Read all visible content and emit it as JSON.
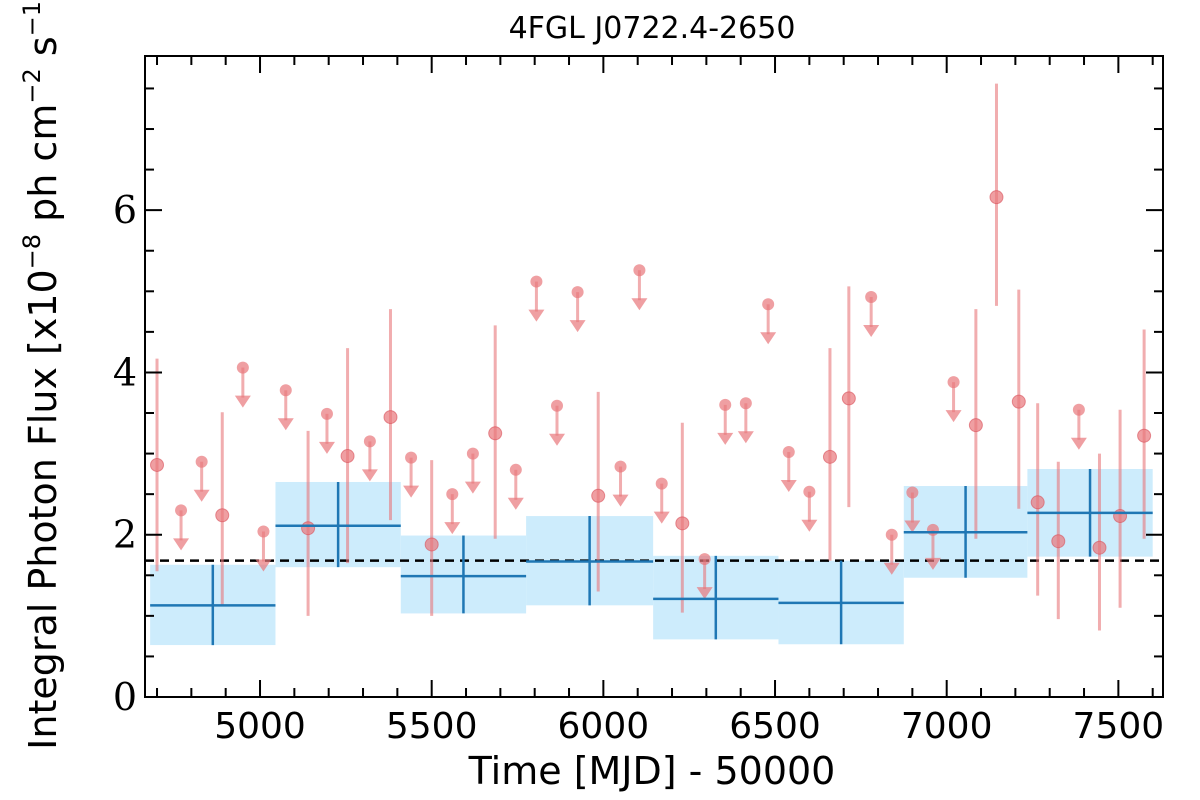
{
  "chart_data": {
    "type": "scatter",
    "title": "4FGL J0722.4-2650",
    "xlabel": "Time [MJD] - 50000",
    "ylabel": "Integral Photon Flux [x10^-8 ph cm^-2 s^-1]",
    "ylabel_parts": {
      "prefix": "Integral Photon Flux [x10",
      "exp1": "−8",
      "mid": " ph cm",
      "exp2": "−2",
      "mid2": " s",
      "exp3": "−1",
      "suffix": "]"
    },
    "xlim": [
      4665,
      7630
    ],
    "ylim": [
      0,
      7.9
    ],
    "xticks": [
      5000,
      5500,
      6000,
      6500,
      7000,
      7500
    ],
    "yticks": [
      0,
      2,
      4,
      6
    ],
    "average_flux": 1.68,
    "colors": {
      "points": "#e8767a",
      "bins": "#1f77b4",
      "band": "#cdecfc",
      "average": "#000000"
    },
    "detections": [
      {
        "x": 4700,
        "y": 2.86,
        "lo": 1.55,
        "hi": 4.17
      },
      {
        "x": 4890,
        "y": 2.24,
        "lo": 1.12,
        "hi": 3.51
      },
      {
        "x": 5140,
        "y": 2.08,
        "lo": 1.0,
        "hi": 3.28
      },
      {
        "x": 5255,
        "y": 2.97,
        "lo": 1.65,
        "hi": 4.3
      },
      {
        "x": 5380,
        "y": 3.45,
        "lo": 2.18,
        "hi": 4.78
      },
      {
        "x": 5500,
        "y": 1.88,
        "lo": 1.0,
        "hi": 2.92
      },
      {
        "x": 5685,
        "y": 3.25,
        "lo": 1.95,
        "hi": 4.58
      },
      {
        "x": 5985,
        "y": 2.48,
        "lo": 1.3,
        "hi": 3.76
      },
      {
        "x": 6230,
        "y": 2.14,
        "lo": 1.04,
        "hi": 3.38
      },
      {
        "x": 6660,
        "y": 2.96,
        "lo": 1.68,
        "hi": 4.3
      },
      {
        "x": 6715,
        "y": 3.68,
        "lo": 2.34,
        "hi": 5.06
      },
      {
        "x": 7085,
        "y": 3.35,
        "lo": 1.95,
        "hi": 4.78
      },
      {
        "x": 7145,
        "y": 6.16,
        "lo": 4.82,
        "hi": 7.56
      },
      {
        "x": 7210,
        "y": 3.64,
        "lo": 2.32,
        "hi": 5.02
      },
      {
        "x": 7265,
        "y": 2.4,
        "lo": 1.25,
        "hi": 3.62
      },
      {
        "x": 7325,
        "y": 1.92,
        "lo": 0.96,
        "hi": 2.9
      },
      {
        "x": 7445,
        "y": 1.84,
        "lo": 0.82,
        "hi": 3.0
      },
      {
        "x": 7505,
        "y": 2.23,
        "lo": 1.1,
        "hi": 3.54
      },
      {
        "x": 7575,
        "y": 3.22,
        "lo": 1.95,
        "hi": 4.53
      }
    ],
    "upper_limits": [
      {
        "x": 4770,
        "y": 2.3
      },
      {
        "x": 4830,
        "y": 2.9
      },
      {
        "x": 4950,
        "y": 4.06
      },
      {
        "x": 5010,
        "y": 2.04
      },
      {
        "x": 5075,
        "y": 3.78
      },
      {
        "x": 5195,
        "y": 3.49
      },
      {
        "x": 5320,
        "y": 3.15
      },
      {
        "x": 5440,
        "y": 2.95
      },
      {
        "x": 5560,
        "y": 2.5
      },
      {
        "x": 5620,
        "y": 3.0
      },
      {
        "x": 5745,
        "y": 2.8
      },
      {
        "x": 5805,
        "y": 5.12
      },
      {
        "x": 5865,
        "y": 3.59
      },
      {
        "x": 5925,
        "y": 4.99
      },
      {
        "x": 6050,
        "y": 2.84
      },
      {
        "x": 6105,
        "y": 5.26
      },
      {
        "x": 6170,
        "y": 2.63
      },
      {
        "x": 6295,
        "y": 1.7
      },
      {
        "x": 6355,
        "y": 3.6
      },
      {
        "x": 6415,
        "y": 3.62
      },
      {
        "x": 6480,
        "y": 4.84
      },
      {
        "x": 6540,
        "y": 3.02
      },
      {
        "x": 6600,
        "y": 2.53
      },
      {
        "x": 6780,
        "y": 4.93
      },
      {
        "x": 6840,
        "y": 2.0
      },
      {
        "x": 6900,
        "y": 2.52
      },
      {
        "x": 6960,
        "y": 2.06
      },
      {
        "x": 7020,
        "y": 3.88
      },
      {
        "x": 7385,
        "y": 3.54
      }
    ],
    "bins": [
      {
        "x0": 4680,
        "x1": 5045,
        "y": 1.13,
        "lo": 0.64,
        "hi": 1.63
      },
      {
        "x0": 5045,
        "x1": 5410,
        "y": 2.11,
        "lo": 1.6,
        "hi": 2.65
      },
      {
        "x0": 5410,
        "x1": 5775,
        "y": 1.49,
        "lo": 1.03,
        "hi": 1.99
      },
      {
        "x0": 5775,
        "x1": 6145,
        "y": 1.67,
        "lo": 1.13,
        "hi": 2.23
      },
      {
        "x0": 6145,
        "x1": 6510,
        "y": 1.21,
        "lo": 0.71,
        "hi": 1.74
      },
      {
        "x0": 6510,
        "x1": 6875,
        "y": 1.16,
        "lo": 0.65,
        "hi": 1.68
      },
      {
        "x0": 6875,
        "x1": 7235,
        "y": 2.03,
        "lo": 1.47,
        "hi": 2.6
      },
      {
        "x0": 7235,
        "x1": 7600,
        "y": 2.27,
        "lo": 1.73,
        "hi": 2.81
      }
    ]
  }
}
